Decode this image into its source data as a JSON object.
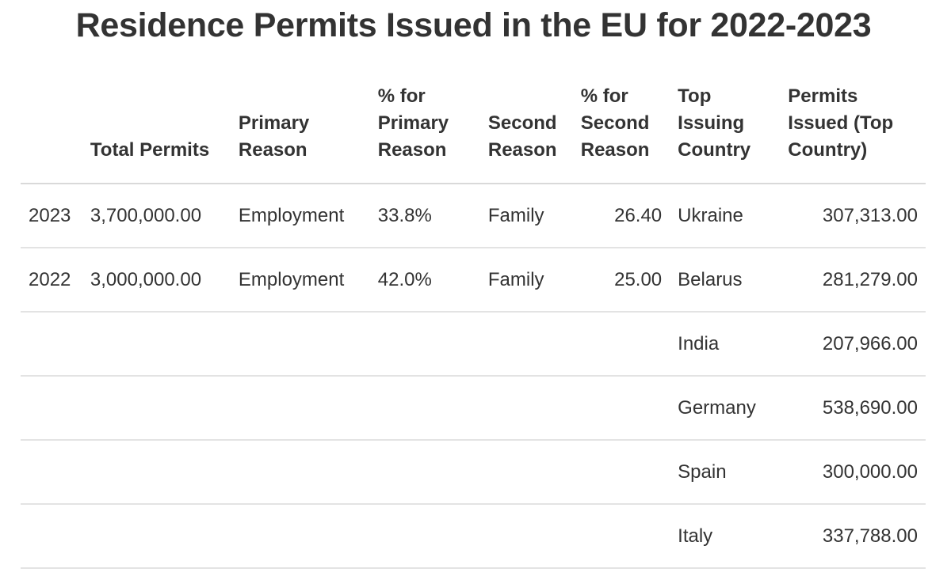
{
  "chart_data": {
    "type": "table",
    "title": "Residence Permits Issued in the EU for 2022-2023",
    "columns": [
      "",
      "Total Permits",
      "Primary Reason",
      "% for Primary Reason",
      "Second Reason",
      "% for Second Reason",
      "Top Issuing Country",
      "Permits Issued (Top Country)"
    ],
    "rows": [
      [
        "2023",
        "3,700,000.00",
        "Employment",
        "33.8%",
        "Family",
        "26.40",
        "Ukraine",
        "307,313.00"
      ],
      [
        "2022",
        "3,000,000.00",
        "Employment",
        "42.0%",
        "Family",
        "25.00",
        "Belarus",
        "281,279.00"
      ],
      [
        "",
        "",
        "",
        "",
        "",
        "",
        "India",
        "207,966.00"
      ],
      [
        "",
        "",
        "",
        "",
        "",
        "",
        "Germany",
        "538,690.00"
      ],
      [
        "",
        "",
        "",
        "",
        "",
        "",
        "Spain",
        "300,000.00"
      ],
      [
        "",
        "",
        "",
        "",
        "",
        "",
        "Italy",
        "337,788.00"
      ]
    ]
  }
}
